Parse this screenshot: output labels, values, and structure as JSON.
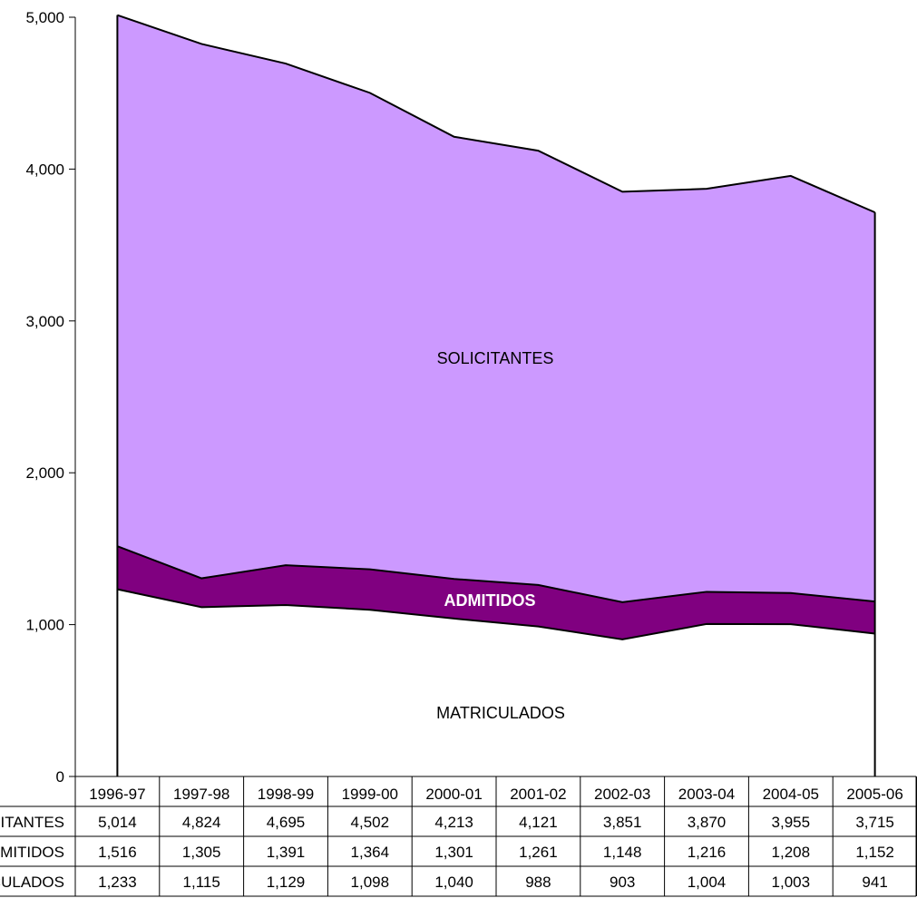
{
  "chart_data": {
    "type": "area",
    "stacked": false,
    "categories": [
      "1996-97",
      "1997-98",
      "1998-99",
      "1999-00",
      "2000-01",
      "2001-02",
      "2002-03",
      "2003-04",
      "2004-05",
      "2005-06"
    ],
    "series": [
      {
        "name": "SOLICITANTES",
        "table_label": "SOLICITANTES",
        "values": [
          5014,
          4824,
          4695,
          4502,
          4213,
          4121,
          3851,
          3870,
          3955,
          3715
        ],
        "color": "#cc99ff"
      },
      {
        "name": "ADMITIDOS",
        "table_label": "ADMITIDOS",
        "values": [
          1516,
          1305,
          1391,
          1364,
          1301,
          1261,
          1148,
          1216,
          1208,
          1152
        ],
        "color": "#800080"
      },
      {
        "name": "MATRICULADOS",
        "table_label": "MATRICULADOS",
        "values": [
          1233,
          1115,
          1129,
          1098,
          1040,
          988,
          903,
          1004,
          1003,
          941
        ],
        "color": "#ffffff"
      }
    ],
    "yticks": [
      0,
      1000,
      2000,
      3000,
      4000,
      5000
    ],
    "ytick_labels": [
      "0",
      "1,000",
      "2,000",
      "3,000",
      "4,000",
      "5,000"
    ],
    "ylim": [
      0,
      5000
    ],
    "table": {
      "rows": [
        {
          "label": "SOLICITANTES",
          "cells": [
            "5,014",
            "4,824",
            "4,695",
            "4,502",
            "4,213",
            "4,121",
            "3,851",
            "3,870",
            "3,955",
            "3,715"
          ]
        },
        {
          "label": "ADMITIDOS",
          "cells": [
            "1,516",
            "1,305",
            "1,391",
            "1,364",
            "1,301",
            "1,261",
            "1,148",
            "1,216",
            "1,208",
            "1,152"
          ]
        },
        {
          "label": "MATRICULADOS",
          "cells": [
            "1,233",
            "1,115",
            "1,129",
            "1,098",
            "1,040",
            "988",
            "903",
            "1,004",
            "1,003",
            "941"
          ]
        }
      ]
    },
    "area_labels": [
      "SOLICITANTES",
      "ADMITIDOS",
      "MATRICULADOS"
    ],
    "grid": false,
    "legend": "none"
  }
}
